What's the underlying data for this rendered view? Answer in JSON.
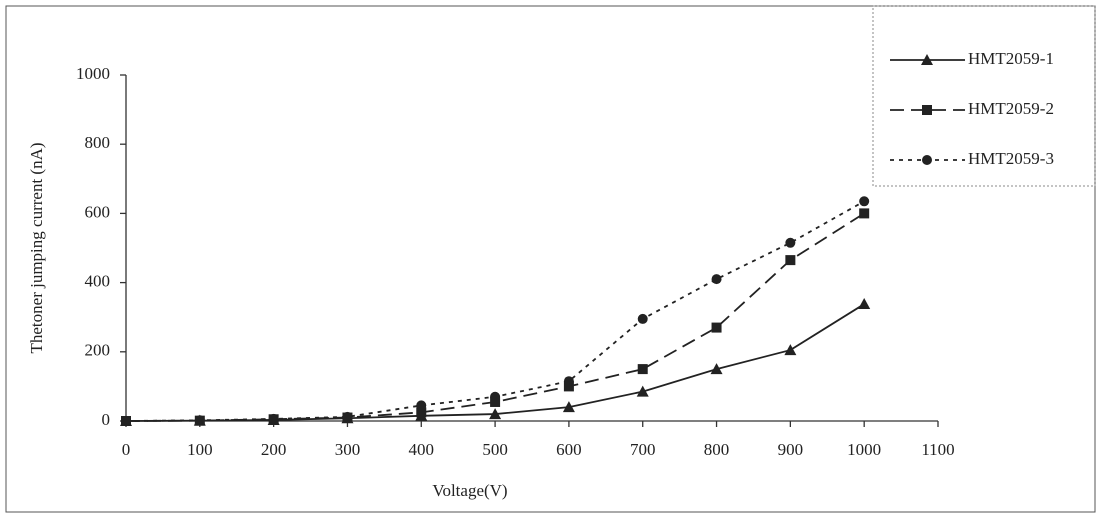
{
  "chart_data": {
    "type": "line",
    "x_label": "Voltage(V)",
    "y_label": "Thetoner jumping current (nA)",
    "x": [
      0,
      100,
      200,
      300,
      400,
      500,
      600,
      700,
      800,
      900,
      1000
    ],
    "series": [
      {
        "name": "HMT2059-1",
        "color": "#222222",
        "dash": "solid",
        "marker": "triangle",
        "values": [
          0,
          1,
          3,
          8,
          15,
          20,
          40,
          85,
          150,
          205,
          338
        ]
      },
      {
        "name": "HMT2059-2",
        "color": "#222222",
        "dash": "dashed",
        "marker": "square",
        "values": [
          0,
          1,
          5,
          10,
          25,
          55,
          100,
          150,
          270,
          465,
          600
        ]
      },
      {
        "name": "HMT2059-3",
        "color": "#222222",
        "dash": "dotted",
        "marker": "circle",
        "values": [
          0,
          2,
          6,
          12,
          45,
          70,
          115,
          295,
          410,
          515,
          635
        ]
      }
    ],
    "xlim": [
      0,
      1100
    ],
    "xticks": [
      0,
      100,
      200,
      300,
      400,
      500,
      600,
      700,
      800,
      900,
      1000,
      1100
    ],
    "ylim": [
      0,
      1000
    ],
    "yticks": [
      0,
      200,
      400,
      600,
      800,
      1000
    ],
    "grid": false,
    "legend": "top-right"
  }
}
